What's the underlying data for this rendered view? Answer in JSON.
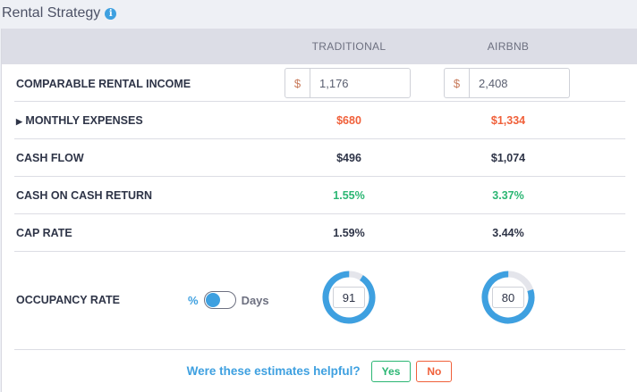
{
  "title": "Rental Strategy",
  "columns": [
    "TRADITIONAL",
    "AIRBNB"
  ],
  "income": {
    "label": "COMPARABLE RENTAL INCOME",
    "currency": "$",
    "traditional": "1,176",
    "airbnb": "2,408"
  },
  "rows": [
    {
      "label": "MONTHLY EXPENSES",
      "traditional": "$680",
      "airbnb": "$1,334"
    },
    {
      "label": "CASH FLOW",
      "traditional": "$496",
      "airbnb": "$1,074"
    },
    {
      "label": "CASH ON CASH RETURN",
      "traditional": "1.55%",
      "airbnb": "3.37%"
    },
    {
      "label": "CAP RATE",
      "traditional": "1.59%",
      "airbnb": "3.44%"
    }
  ],
  "occupancy": {
    "label": "OCCUPANCY RATE",
    "unit_percent": "%",
    "unit_days": "Days",
    "traditional": "91",
    "airbnb": "80",
    "traditional_pct": 91,
    "airbnb_pct": 80
  },
  "feedback": {
    "question": "Were these estimates helpful?",
    "yes": "Yes",
    "no": "No"
  },
  "colors": {
    "accent": "#3ea0e0",
    "expense": "#f0603a",
    "positive": "#2bb673"
  }
}
